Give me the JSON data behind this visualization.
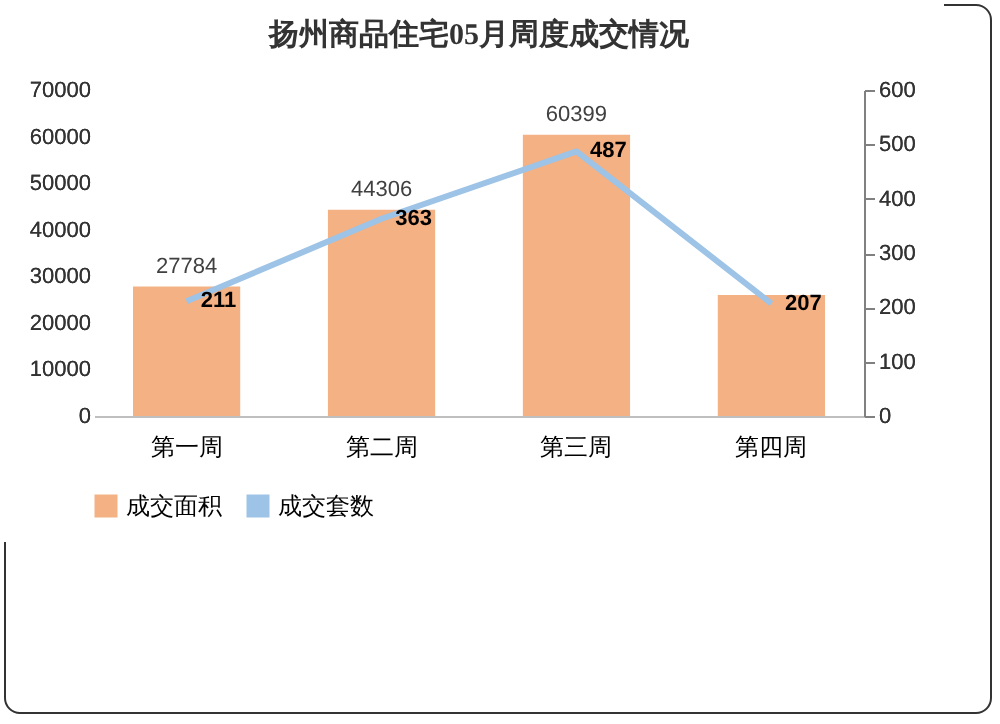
{
  "chart_data": {
    "type": "bar",
    "title": "扬州商品住宅05月周度成交情况",
    "categories": [
      "第一周",
      "第二周",
      "第三周",
      "第四周"
    ],
    "series": [
      {
        "name": "成交面积",
        "color": "#f4b183",
        "values": [
          27784,
          44306,
          60399,
          26000
        ],
        "value_labels": [
          "27784",
          "44306",
          "60399",
          null
        ]
      },
      {
        "name": "成交套数",
        "type": "line",
        "axis": "y2",
        "color": "#9dc3e6",
        "values": [
          211,
          363,
          487,
          207
        ],
        "value_labels": [
          "211",
          "363",
          "487",
          "207"
        ]
      }
    ],
    "ylim": [
      0,
      70000
    ],
    "yticks": [
      0,
      10000,
      20000,
      30000,
      40000,
      50000,
      60000,
      70000
    ],
    "y2lim": [
      0,
      600
    ],
    "y2ticks": [
      0,
      100,
      200,
      300,
      400,
      500,
      600
    ],
    "legend": "bottom"
  }
}
